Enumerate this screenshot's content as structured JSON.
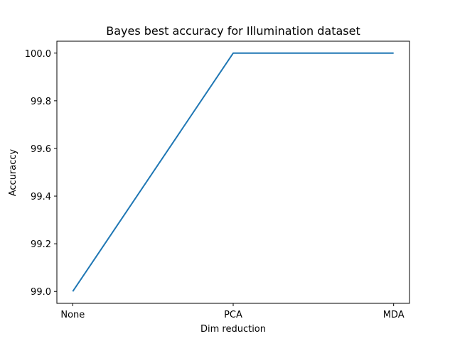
{
  "chart_data": {
    "type": "line",
    "title": "Bayes best accuracy for Illumination dataset",
    "xlabel": "Dim reduction",
    "ylabel": "Accuraccy",
    "categories": [
      "None",
      "PCA",
      "MDA"
    ],
    "series": [
      {
        "values": [
          99.0,
          100.0,
          100.0
        ],
        "color": "#1f77b4"
      }
    ],
    "ylim": [
      98.95,
      100.05
    ],
    "yticks": [
      99.0,
      99.2,
      99.4,
      99.6,
      99.8,
      100.0
    ],
    "ytick_labels": [
      "99.0",
      "99.2",
      "99.4",
      "99.6",
      "99.8",
      "100.0"
    ],
    "grid": false,
    "legend": "none"
  }
}
